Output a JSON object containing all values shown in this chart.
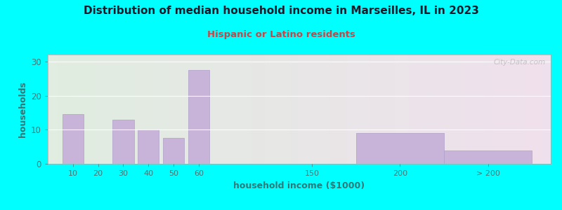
{
  "title": "Distribution of median household income in Marseilles, IL in 2023",
  "subtitle": "Hispanic or Latino residents",
  "xlabel": "household income ($1000)",
  "ylabel": "households",
  "title_color": "#1a1a2a",
  "subtitle_color": "#cc4444",
  "axis_label_color": "#337777",
  "tick_color": "#447777",
  "background_outer": "#00ffff",
  "bar_color": "#c8b4d8",
  "bar_edge_color": "#b0a0c8",
  "watermark": "City-Data.com",
  "bar_heights": [
    14.5,
    0,
    13,
    10,
    7.5,
    27.5,
    0,
    9,
    4
  ],
  "bar_positions": [
    1,
    2,
    3,
    4,
    5,
    6,
    10.5,
    14,
    17.5
  ],
  "bar_widths": [
    0.85,
    0.85,
    0.85,
    0.85,
    0.85,
    0.85,
    0.85,
    3.5,
    3.5
  ],
  "xtick_positions": [
    1,
    2,
    3,
    4,
    5,
    6,
    10.5,
    14,
    17.5
  ],
  "xtick_labels": [
    "10",
    "20",
    "30",
    "40",
    "50",
    "60",
    "150",
    "200",
    "> 200"
  ],
  "yticks": [
    0,
    10,
    20,
    30
  ],
  "ylim": [
    0,
    32
  ],
  "xlim": [
    0,
    20
  ],
  "figsize": [
    8.0,
    3.0
  ],
  "dpi": 100
}
